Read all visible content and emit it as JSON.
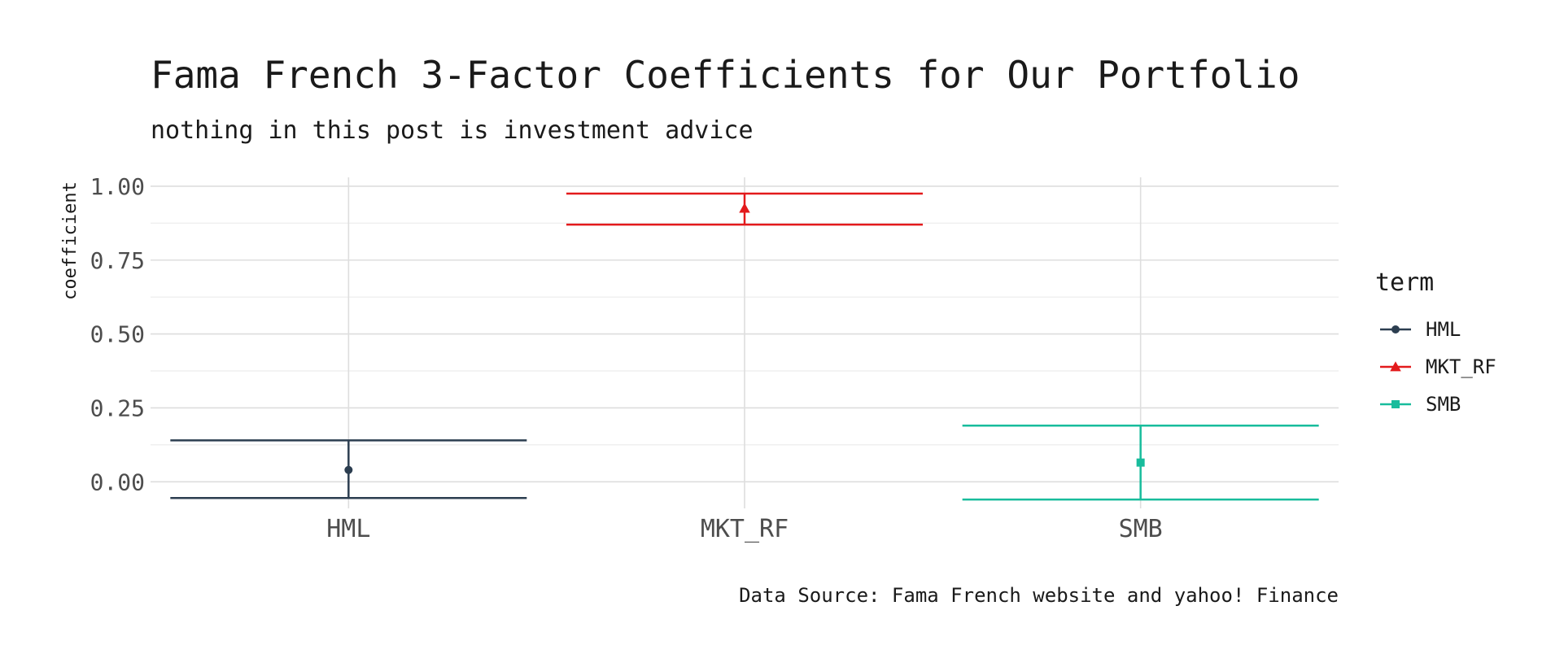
{
  "chart_data": {
    "type": "errorbar",
    "title": "Fama French 3-Factor Coefficients for Our Portfolio",
    "subtitle": "nothing in this post is investment advice",
    "caption": "Data Source: Fama French website and yahoo! Finance",
    "xlabel": "",
    "ylabel": "coefficient",
    "categories": [
      "HML",
      "MKT_RF",
      "SMB"
    ],
    "yticks": [
      "0.00",
      "0.25",
      "0.50",
      "0.75",
      "1.00"
    ],
    "ytick_values": [
      0,
      0.25,
      0.5,
      0.75,
      1.0
    ],
    "ylim": [
      -0.09,
      1.03
    ],
    "grid": true,
    "legend": {
      "title": "term",
      "position": "right"
    },
    "series": [
      {
        "name": "HML",
        "estimate": 0.04,
        "conf_low": -0.055,
        "conf_high": 0.14,
        "color": "#2c3e50",
        "shape": "circle"
      },
      {
        "name": "MKT_RF",
        "estimate": 0.925,
        "conf_low": 0.87,
        "conf_high": 0.975,
        "color": "#e31a1c",
        "shape": "triangle"
      },
      {
        "name": "SMB",
        "estimate": 0.065,
        "conf_low": -0.06,
        "conf_high": 0.19,
        "color": "#18bc9c",
        "shape": "square"
      }
    ]
  }
}
